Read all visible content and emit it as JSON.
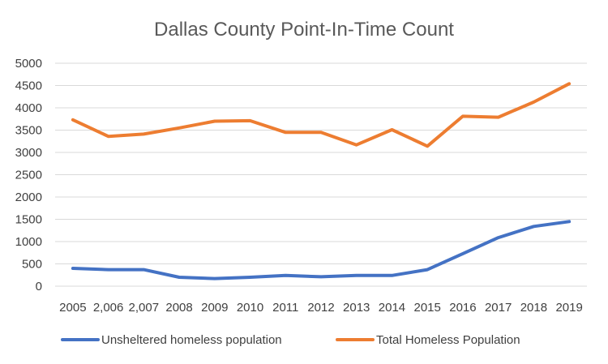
{
  "chart_data": {
    "type": "line",
    "title": "Dallas County Point-In-Time Count",
    "xlabel": "",
    "ylabel": "",
    "categories": [
      "2005",
      "2,006",
      "2,007",
      "2008",
      "2009",
      "2010",
      "2011",
      "2012",
      "2013",
      "2014",
      "2015",
      "2016",
      "2017",
      "2018",
      "2019"
    ],
    "ylim": [
      0,
      5000
    ],
    "yticks": [
      0,
      500,
      1000,
      1500,
      2000,
      2500,
      3000,
      3500,
      4000,
      4500,
      5000
    ],
    "grid": true,
    "legend": "bottom",
    "series": [
      {
        "name": "Unsheltered homeless population",
        "color": "#4472C4",
        "values": [
          400,
          370,
          370,
          200,
          170,
          200,
          240,
          210,
          240,
          240,
          370,
          730,
          1090,
          1340,
          1450
        ]
      },
      {
        "name": "Total Homeless Population",
        "color": "#ED7D31",
        "values": [
          3730,
          3360,
          3410,
          3550,
          3700,
          3710,
          3450,
          3450,
          3170,
          3510,
          3140,
          3810,
          3790,
          4130,
          4540
        ]
      }
    ]
  }
}
